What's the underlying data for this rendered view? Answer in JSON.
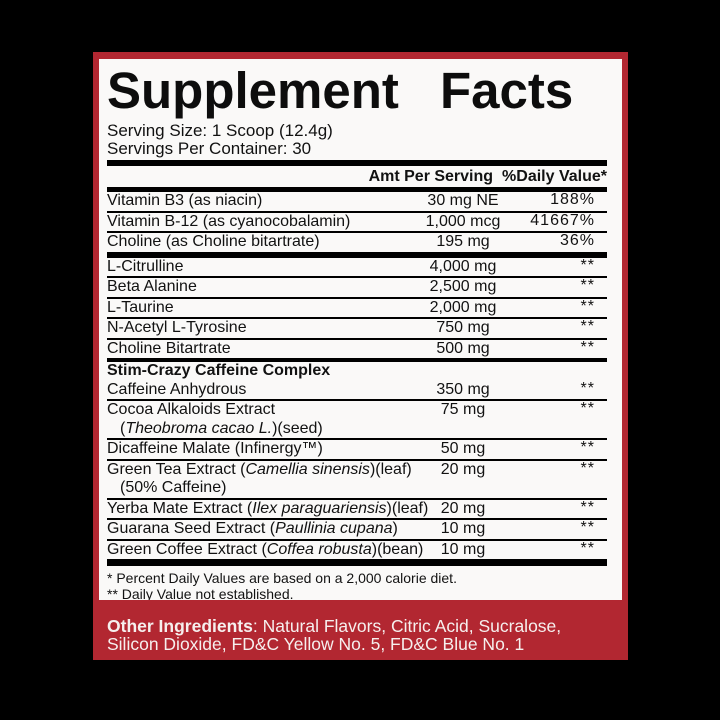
{
  "colors": {
    "background": "#000000",
    "card_red": "#b22731",
    "panel_white": "#faf9f8",
    "text_black": "#121212",
    "other_ingredients_text": "#f6efee"
  },
  "label": {
    "title": "Supplement Facts",
    "serving_size": "Serving Size: 1 Scoop (12.4g)",
    "servings_per_container": "Servings Per Container: 30",
    "col_amt": "Amt Per Serving",
    "col_dv": "%Daily Value*",
    "rows": [
      {
        "type": "item",
        "name": [
          [
            "Vitamin B3 (as niacin)",
            false
          ]
        ],
        "amt": "30 mg NE",
        "dv": "188%",
        "sep": "thin"
      },
      {
        "type": "item",
        "name": [
          [
            "Vitamin B-12 (as cyanocobalamin)",
            false
          ]
        ],
        "amt": "1,000 mcg",
        "dv": "41667%",
        "sep": "thin"
      },
      {
        "type": "item",
        "name": [
          [
            "Choline (as Choline bitartrate)",
            false
          ]
        ],
        "amt": "195 mg",
        "dv": "36%",
        "sep": "thick"
      },
      {
        "type": "item",
        "name": [
          [
            "L-Citrulline",
            false
          ]
        ],
        "amt": "4,000 mg",
        "dv": "**",
        "sep": "thin"
      },
      {
        "type": "item",
        "name": [
          [
            "Beta Alanine",
            false
          ]
        ],
        "amt": "2,500 mg",
        "dv": "**",
        "sep": "thin"
      },
      {
        "type": "item",
        "name": [
          [
            "L-Taurine",
            false
          ]
        ],
        "amt": "2,000 mg",
        "dv": "**",
        "sep": "thin"
      },
      {
        "type": "item",
        "name": [
          [
            "N-Acetyl L-Tyrosine",
            false
          ]
        ],
        "amt": "750 mg",
        "dv": "**",
        "sep": "thin"
      },
      {
        "type": "item",
        "name": [
          [
            "Choline Bitartrate",
            false
          ]
        ],
        "amt": "500 mg",
        "dv": "**",
        "sep": "medium"
      },
      {
        "type": "section",
        "name": [
          [
            "Stim-Crazy Caffeine Complex",
            false
          ]
        ],
        "sep": "none"
      },
      {
        "type": "item",
        "name": [
          [
            "Caffeine Anhydrous",
            false
          ]
        ],
        "amt": "350 mg",
        "dv": "**",
        "sep": "thin"
      },
      {
        "type": "item",
        "name": [
          [
            "Cocoa Alkaloids Extract",
            false
          ]
        ],
        "line2": [
          [
            "(",
            false
          ],
          [
            "Theobroma cacao L.",
            true
          ],
          [
            ")(seed)",
            false
          ]
        ],
        "amt": "75 mg",
        "dv": "**",
        "sep": "thin"
      },
      {
        "type": "item",
        "name": [
          [
            "Dicaffeine Malate (Infinergy™)",
            false
          ]
        ],
        "amt": "50 mg",
        "dv": "**",
        "sep": "thin"
      },
      {
        "type": "item",
        "name": [
          [
            "Green Tea Extract (",
            false
          ],
          [
            "Camellia sinensis",
            true
          ],
          [
            ")(leaf)",
            false
          ]
        ],
        "line2": [
          [
            "(50% Caffeine)",
            false
          ]
        ],
        "amt": "20 mg",
        "dv": "**",
        "sep": "thin"
      },
      {
        "type": "item",
        "name": [
          [
            "Yerba Mate Extract (",
            false
          ],
          [
            "Ilex paraguariensis",
            true
          ],
          [
            ")(leaf)",
            false
          ]
        ],
        "amt": "20 mg",
        "dv": "**",
        "sep": "thin"
      },
      {
        "type": "item",
        "name": [
          [
            "Guarana Seed Extract (",
            false
          ],
          [
            "Paullinia cupana",
            true
          ],
          [
            ")",
            false
          ]
        ],
        "amt": "10 mg",
        "dv": "**",
        "sep": "thin"
      },
      {
        "type": "item",
        "name": [
          [
            "Green Coffee Extract (",
            false
          ],
          [
            "Coffea robusta",
            true
          ],
          [
            ")(bean)",
            false
          ]
        ],
        "amt": "10 mg",
        "dv": "**",
        "sep": "thickfinal"
      }
    ],
    "footnotes": [
      "* Percent Daily Values are based on a 2,000 calorie diet.",
      "** Daily Value not established."
    ],
    "other_ingredients": {
      "label": "Other Ingredients",
      "text": ": Natural Flavors, Citric Acid, Sucralose, Silicon Dioxide, FD&C Yellow No. 5, FD&C Blue No. 1"
    }
  }
}
